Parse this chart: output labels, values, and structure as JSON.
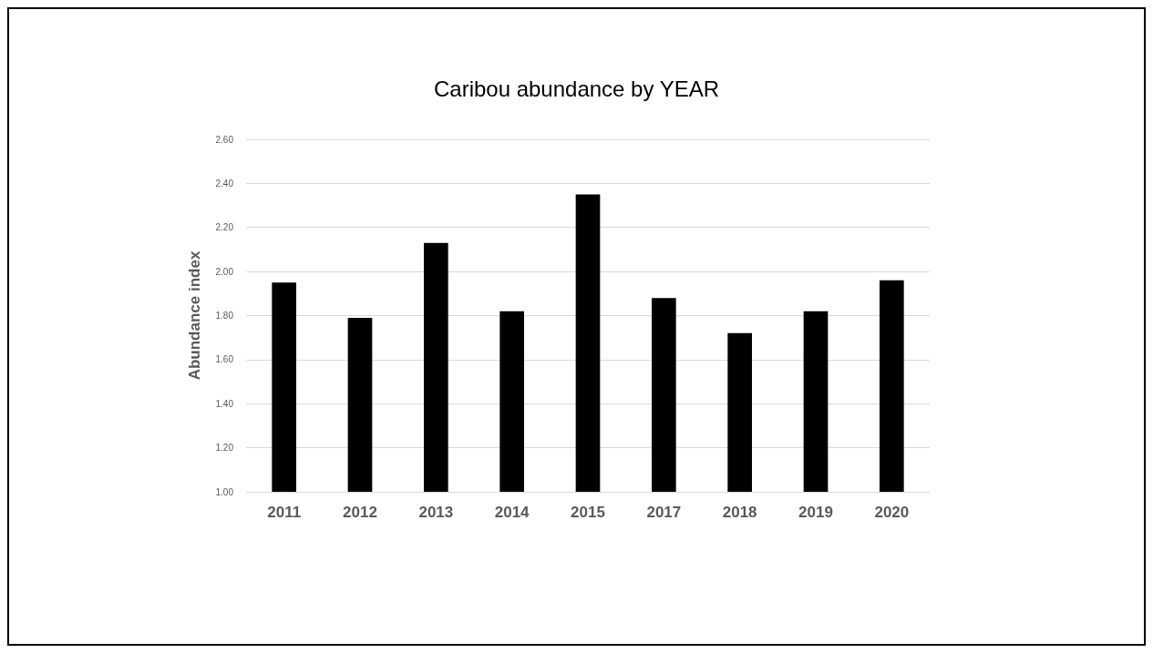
{
  "chart_data": {
    "type": "bar",
    "title": "Caribou abundance by YEAR",
    "ylabel": "Abundance index",
    "categories": [
      "2011",
      "2012",
      "2013",
      "2014",
      "2015",
      "2017",
      "2018",
      "2019",
      "2020"
    ],
    "values": [
      1.95,
      1.79,
      2.13,
      1.82,
      2.35,
      1.88,
      1.72,
      1.82,
      1.96
    ],
    "color": "#000000",
    "ylim": [
      1.0,
      2.6
    ],
    "yticks": [
      {
        "value": 1.0,
        "label": "1.00"
      },
      {
        "value": 1.2,
        "label": "1.20"
      },
      {
        "value": 1.4,
        "label": "1.40"
      },
      {
        "value": 1.6,
        "label": "1.60"
      },
      {
        "value": 1.8,
        "label": "1.80"
      },
      {
        "value": 2.0,
        "label": "2.00"
      },
      {
        "value": 2.2,
        "label": "2.20"
      },
      {
        "value": 2.4,
        "label": "2.40"
      },
      {
        "value": 2.6,
        "label": "2.60"
      }
    ],
    "grid": "y"
  }
}
